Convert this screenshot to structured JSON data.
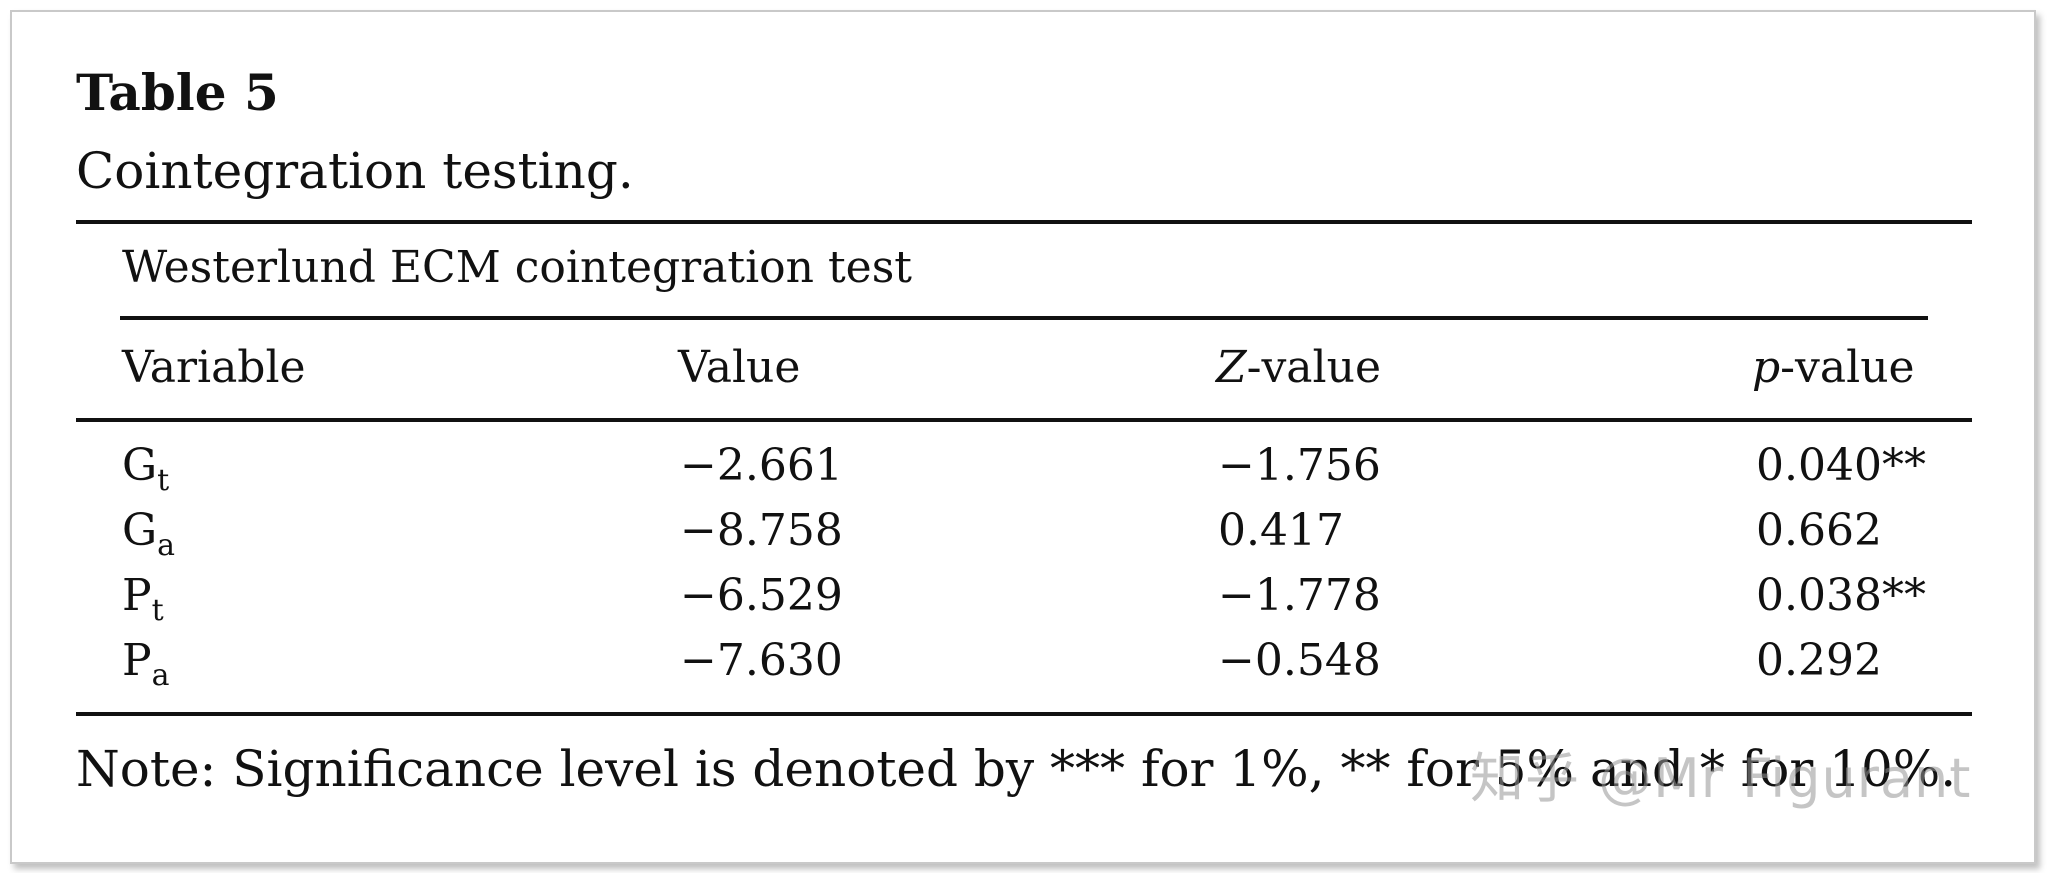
{
  "table": {
    "label": "Table 5",
    "caption": "Cointegration testing.",
    "group_heading": "Westerlund ECM cointegration test",
    "columns": {
      "variable": "Variable",
      "value": "Value",
      "z_prefix": "Z",
      "z_suffix": "-value",
      "p_prefix": "p",
      "p_suffix": "-value"
    },
    "rows": [
      {
        "var_base": "G",
        "var_sub": "t",
        "value": "−2.661",
        "z": "−1.756",
        "p": "0.040**"
      },
      {
        "var_base": "G",
        "var_sub": "a",
        "value": "−8.758",
        "z": "0.417",
        "p": "0.662"
      },
      {
        "var_base": "P",
        "var_sub": "t",
        "value": "−6.529",
        "z": "−1.778",
        "p": "0.038**"
      },
      {
        "var_base": "P",
        "var_sub": "a",
        "value": "−7.630",
        "z": "−0.548",
        "p": "0.292"
      }
    ],
    "note": "Note: Significance level is denoted by *** for 1%, ** for 5% and * for 10%."
  },
  "watermark": "知乎 @Mr Figurant"
}
